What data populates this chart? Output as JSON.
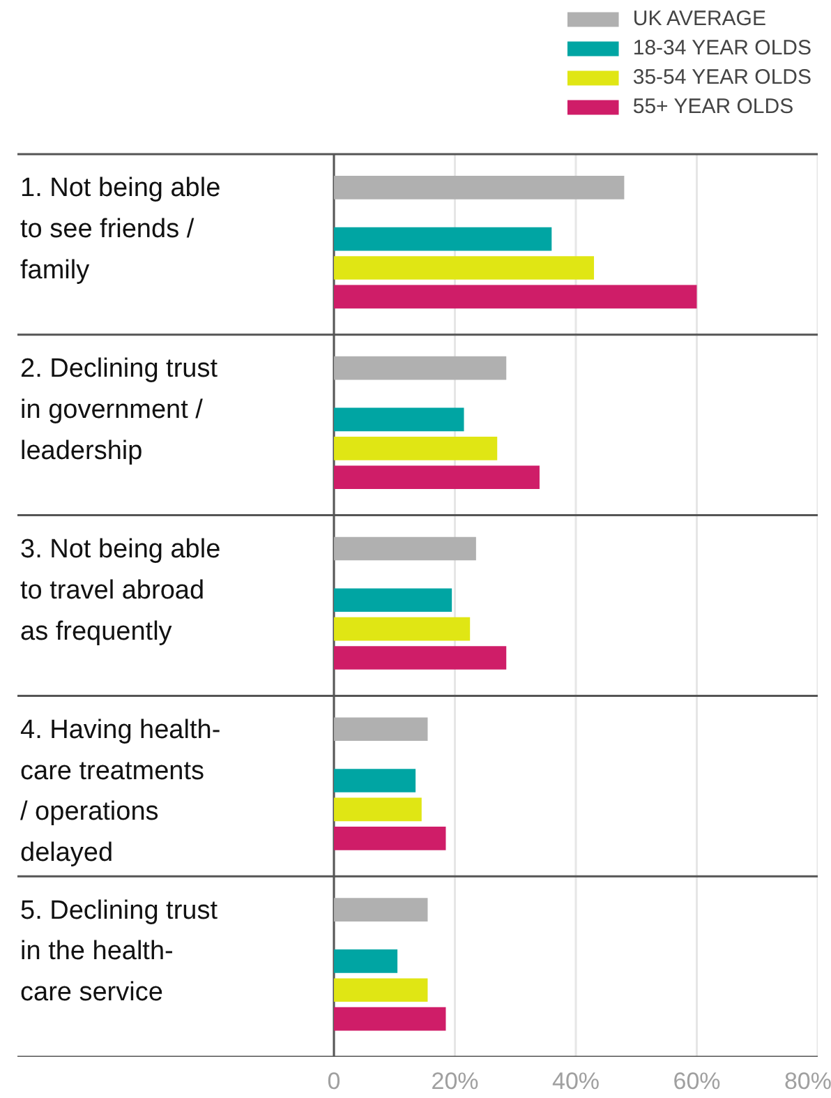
{
  "chart_data": {
    "type": "bar",
    "orientation": "horizontal",
    "categories": [
      "1. Not being able to see friends / family",
      "2. Declining trust in government / leadership",
      "3. Not being able to travel abroad as frequently",
      "4. Having health-care treatments / operations delayed",
      "5. Declining trust in the health-care service"
    ],
    "series": [
      {
        "name": "UK AVERAGE",
        "color": "#b0b0b0",
        "values": [
          48,
          28.5,
          23.5,
          15.5,
          15.5
        ]
      },
      {
        "name": "18-34 YEAR OLDS",
        "color": "#00a5a3",
        "values": [
          36,
          21.5,
          19.5,
          13.5,
          10.5
        ]
      },
      {
        "name": "35-54 YEAR OLDS",
        "color": "#e0e614",
        "values": [
          43,
          27,
          22.5,
          14.5,
          15.5
        ]
      },
      {
        "name": "55+ YEAR OLDS",
        "color": "#cf1d68",
        "values": [
          60,
          34,
          28.5,
          18.5,
          18.5
        ]
      }
    ],
    "xlim": [
      0,
      80
    ],
    "xticks": [
      {
        "value": 0,
        "label": "0"
      },
      {
        "value": 20,
        "label": "20%"
      },
      {
        "value": 40,
        "label": "40%"
      },
      {
        "value": 60,
        "label": "60%"
      },
      {
        "value": 80,
        "label": "80%"
      }
    ],
    "grid": "x",
    "legend": "top right"
  }
}
